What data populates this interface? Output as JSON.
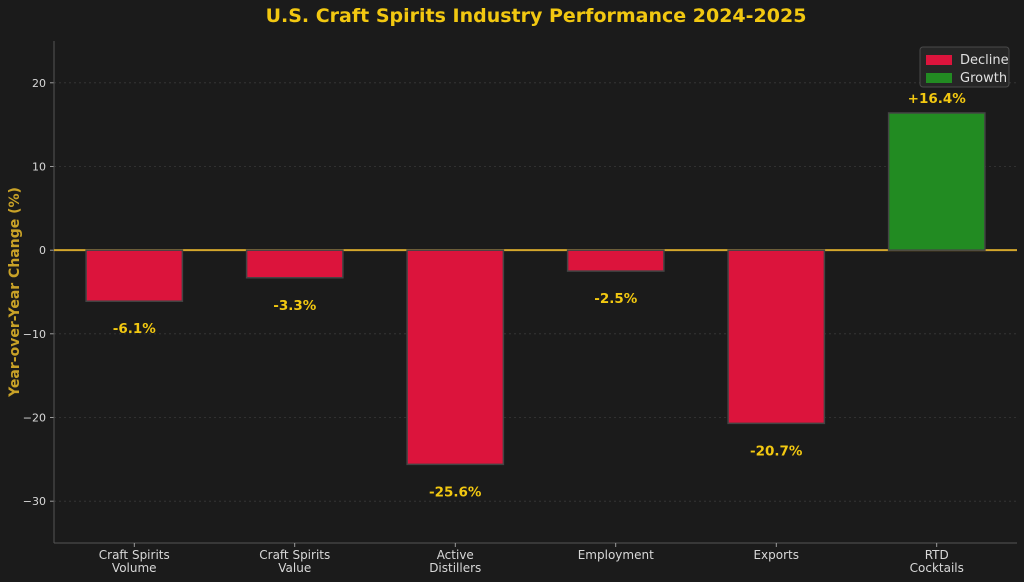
{
  "chart_data": {
    "type": "bar",
    "title": "U.S. Craft Spirits Industry Performance 2024-2025",
    "ylabel": "Year-over-Year Change (%)",
    "xlabel": "",
    "ylim": [
      -35,
      25
    ],
    "yticks": [
      -30,
      -20,
      -10,
      0,
      10,
      20
    ],
    "categories": [
      [
        "Craft Spirits",
        "Volume"
      ],
      [
        "Craft Spirits",
        "Value"
      ],
      [
        "Active",
        "Distillers"
      ],
      [
        "Employment"
      ],
      [
        "Exports"
      ],
      [
        "RTD",
        "Cocktails"
      ]
    ],
    "values": [
      -6.1,
      -3.3,
      -25.6,
      -2.5,
      -20.7,
      16.4
    ],
    "data_labels": [
      "-6.1%",
      "-3.3%",
      "-25.6%",
      "-2.5%",
      "-20.7%",
      "+16.4%"
    ],
    "legend": {
      "position": "top-right",
      "entries": [
        {
          "label": "Decline",
          "color": "#dc143c"
        },
        {
          "label": "Growth",
          "color": "#228b22"
        }
      ]
    },
    "colors": {
      "decline": "#dc143c",
      "growth": "#228b22",
      "zero_line": "#d4a72c",
      "accent_text": "#f2c811",
      "background": "#1b1b1b"
    },
    "grid": true
  }
}
